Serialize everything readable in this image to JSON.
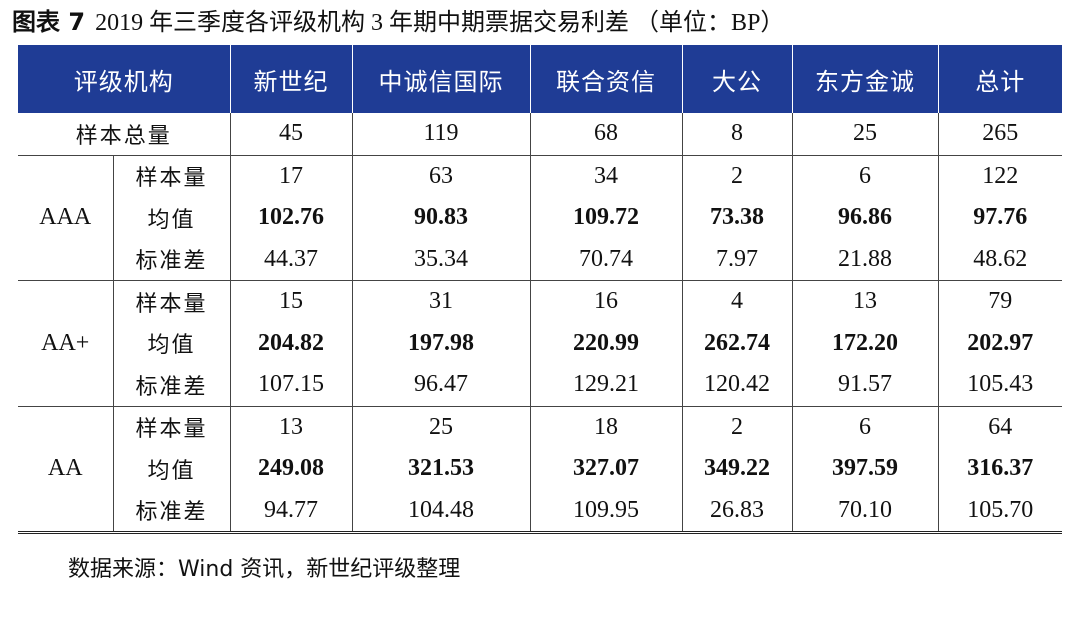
{
  "caption": {
    "label": "图表 7",
    "title": "2019 年三季度各评级机构 3 年期中期票据交易利差 （单位：BP）"
  },
  "table": {
    "headers": [
      "评级机构",
      "新世纪",
      "中诚信国际",
      "联合资信",
      "大公",
      "东方金诚",
      "总计"
    ],
    "total_row": {
      "label": "样本总量",
      "values": [
        "45",
        "119",
        "68",
        "8",
        "25",
        "265"
      ]
    },
    "metric_labels": [
      "样本量",
      "均值",
      "标准差"
    ],
    "groups": [
      {
        "rating": "AAA",
        "count": [
          "17",
          "63",
          "34",
          "2",
          "6",
          "122"
        ],
        "mean": [
          "102.76",
          "90.83",
          "109.72",
          "73.38",
          "96.86",
          "97.76"
        ],
        "std": [
          "44.37",
          "35.34",
          "70.74",
          "7.97",
          "21.88",
          "48.62"
        ]
      },
      {
        "rating": "AA+",
        "count": [
          "15",
          "31",
          "16",
          "4",
          "13",
          "79"
        ],
        "mean": [
          "204.82",
          "197.98",
          "220.99",
          "262.74",
          "172.20",
          "202.97"
        ],
        "std": [
          "107.15",
          "96.47",
          "129.21",
          "120.42",
          "91.57",
          "105.43"
        ]
      },
      {
        "rating": "AA",
        "count": [
          "13",
          "25",
          "18",
          "2",
          "6",
          "64"
        ],
        "mean": [
          "249.08",
          "321.53",
          "327.07",
          "349.22",
          "397.59",
          "316.37"
        ],
        "std": [
          "94.77",
          "104.48",
          "109.95",
          "26.83",
          "70.10",
          "105.70"
        ]
      }
    ]
  },
  "source": "数据来源：Wind 资讯，新世纪评级整理",
  "colors": {
    "header_background": "#1f3c95",
    "header_text": "#ffffff"
  }
}
